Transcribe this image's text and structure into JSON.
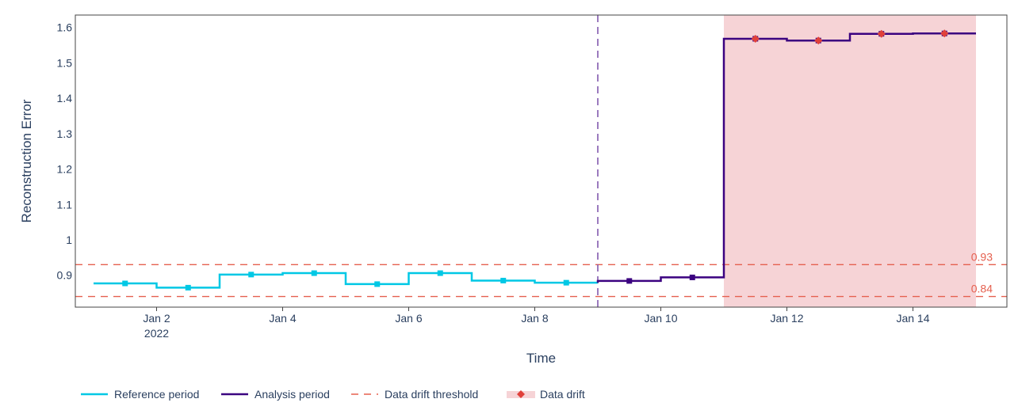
{
  "chart_data": {
    "type": "line",
    "title": "",
    "xlabel": "Time",
    "ylabel": "Reconstruction Error",
    "xlim": [
      "2022-01-01",
      "2022-01-15"
    ],
    "ylim": [
      0.81,
      1.635
    ],
    "x_ticks": [
      {
        "date": "2022-01-02",
        "label": "Jan 2",
        "sublabel": "2022"
      },
      {
        "date": "2022-01-04",
        "label": "Jan 4",
        "sublabel": ""
      },
      {
        "date": "2022-01-06",
        "label": "Jan 6",
        "sublabel": ""
      },
      {
        "date": "2022-01-08",
        "label": "Jan 8",
        "sublabel": ""
      },
      {
        "date": "2022-01-10",
        "label": "Jan 10",
        "sublabel": ""
      },
      {
        "date": "2022-01-12",
        "label": "Jan 12",
        "sublabel": ""
      },
      {
        "date": "2022-01-14",
        "label": "Jan 14",
        "sublabel": ""
      }
    ],
    "y_ticks": [
      {
        "value": 0.9,
        "label": "0.9"
      },
      {
        "value": 1.0,
        "label": "1"
      },
      {
        "value": 1.1,
        "label": "1.1"
      },
      {
        "value": 1.2,
        "label": "1.2"
      },
      {
        "value": 1.3,
        "label": "1.3"
      },
      {
        "value": 1.4,
        "label": "1.4"
      },
      {
        "value": 1.5,
        "label": "1.5"
      },
      {
        "value": 1.6,
        "label": "1.6"
      }
    ],
    "series": [
      {
        "name": "Reference period",
        "color": "#00c8e5",
        "marker": "square",
        "chunks": [
          {
            "start": "2022-01-01",
            "end": "2022-01-02",
            "value": 0.877
          },
          {
            "start": "2022-01-02",
            "end": "2022-01-03",
            "value": 0.865
          },
          {
            "start": "2022-01-03",
            "end": "2022-01-04",
            "value": 0.902
          },
          {
            "start": "2022-01-04",
            "end": "2022-01-05",
            "value": 0.906
          },
          {
            "start": "2022-01-05",
            "end": "2022-01-06",
            "value": 0.875
          },
          {
            "start": "2022-01-06",
            "end": "2022-01-07",
            "value": 0.906
          },
          {
            "start": "2022-01-07",
            "end": "2022-01-08",
            "value": 0.885
          },
          {
            "start": "2022-01-08",
            "end": "2022-01-09",
            "value": 0.879
          }
        ]
      },
      {
        "name": "Analysis period",
        "color": "#3b0280",
        "marker": "square",
        "chunks": [
          {
            "start": "2022-01-09",
            "end": "2022-01-10",
            "value": 0.884
          },
          {
            "start": "2022-01-10",
            "end": "2022-01-11",
            "value": 0.894
          },
          {
            "start": "2022-01-11",
            "end": "2022-01-12",
            "value": 1.568
          },
          {
            "start": "2022-01-12",
            "end": "2022-01-13",
            "value": 1.563
          },
          {
            "start": "2022-01-13",
            "end": "2022-01-14",
            "value": 1.582
          },
          {
            "start": "2022-01-14",
            "end": "2022-01-15",
            "value": 1.583
          }
        ]
      }
    ],
    "period_boundary": "2022-01-09",
    "thresholds": [
      {
        "value": 0.93,
        "label": "0.93"
      },
      {
        "value": 0.84,
        "label": "0.84"
      }
    ],
    "drift_region": {
      "start": "2022-01-11",
      "end": "2022-01-15"
    },
    "drift_points": [
      {
        "date": "2022-01-11T12:00",
        "value": 1.568
      },
      {
        "date": "2022-01-12T12:00",
        "value": 1.563
      },
      {
        "date": "2022-01-13T12:00",
        "value": 1.582
      },
      {
        "date": "2022-01-14T12:00",
        "value": 1.583
      }
    ],
    "legend": {
      "placement": "bottom-left",
      "items": [
        {
          "label": "Reference period",
          "kind": "line",
          "color": "#00c8e5"
        },
        {
          "label": "Analysis period",
          "kind": "line",
          "color": "#3b0280"
        },
        {
          "label": "Data drift threshold",
          "kind": "dash",
          "color": "#e5604f"
        },
        {
          "label": "Data drift",
          "kind": "area-marker",
          "color": "#e0403a"
        }
      ]
    },
    "grid": false,
    "colors": {
      "threshold": "#e5604f",
      "drift_fill": "#f6d3d6",
      "drift_marker": "#e0403a",
      "boundary": "#7a4fa8"
    }
  }
}
